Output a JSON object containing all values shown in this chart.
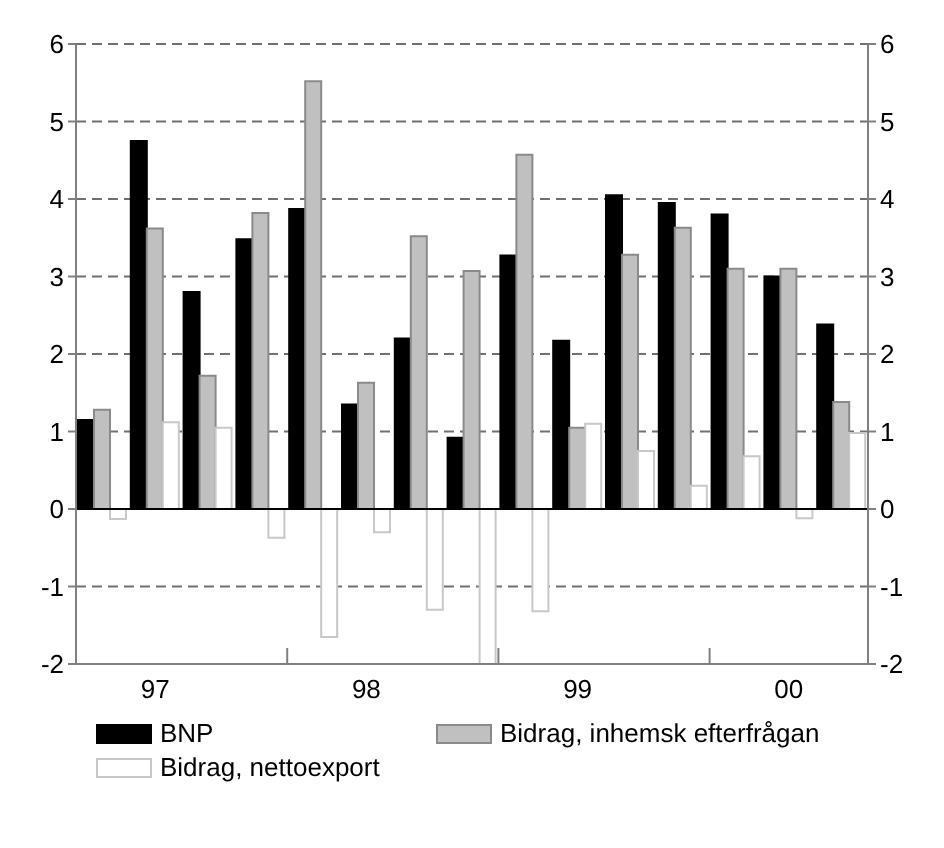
{
  "chart_data": {
    "type": "bar",
    "categories": [
      null,
      "97",
      null,
      null,
      null,
      "98",
      null,
      null,
      null,
      "99",
      null,
      null,
      null,
      "00",
      null
    ],
    "ylim": [
      -2,
      6
    ],
    "yticks": [
      -2,
      -1,
      0,
      1,
      2,
      3,
      4,
      5,
      6
    ],
    "y2lim": [
      -2,
      6
    ],
    "y2ticks": [
      -2,
      -1,
      0,
      1,
      2,
      3,
      4,
      5,
      6
    ],
    "grid": "y",
    "legend": "bottom",
    "series": [
      {
        "name": "BNP",
        "color": "#000000",
        "values": [
          1.15,
          4.75,
          2.8,
          3.48,
          3.87,
          1.35,
          2.2,
          0.92,
          3.27,
          2.17,
          4.05,
          3.95,
          3.8,
          3.0,
          2.38
        ]
      },
      {
        "name": "Bidrag, inhemsk efterfrågan",
        "color": "#c0c0c0",
        "values": [
          1.28,
          3.62,
          1.72,
          3.82,
          5.52,
          1.63,
          3.52,
          3.07,
          4.57,
          1.05,
          3.28,
          3.63,
          3.1,
          3.1,
          1.38
        ]
      },
      {
        "name": "Bidrag, nettoexport",
        "color": "#ffffff",
        "values": [
          -0.13,
          1.12,
          1.05,
          -0.37,
          -1.65,
          -0.3,
          -1.3,
          -2.0,
          -1.32,
          1.1,
          0.75,
          0.3,
          0.68,
          -0.12,
          0.98
        ]
      }
    ]
  }
}
